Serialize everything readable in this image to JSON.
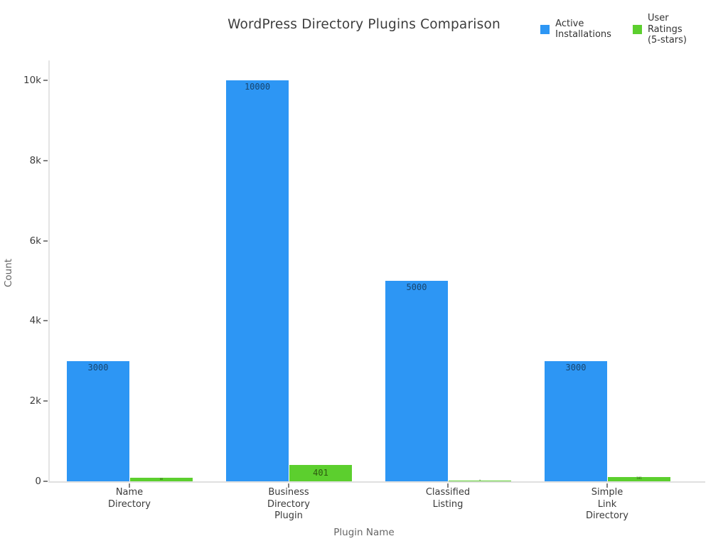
{
  "title": "WordPress Directory Plugins Comparison",
  "legend": {
    "items": [
      {
        "key": "active-installations",
        "label": "Active\nInstallations",
        "color": "#2d96f4"
      },
      {
        "key": "user-ratings",
        "label": "User\nRatings\n(5-stars)",
        "color": "#5ccf2e"
      }
    ]
  },
  "axes": {
    "x_title": "Plugin Name",
    "y_title": "Count"
  },
  "chart_data": {
    "type": "bar",
    "title": "WordPress Directory Plugins Comparison",
    "xlabel": "Plugin Name",
    "ylabel": "Count",
    "grid": false,
    "legend_position": "top-right",
    "ylim": [
      0,
      10000
    ],
    "yticks": [
      {
        "value": 0,
        "label": "0"
      },
      {
        "value": 2000,
        "label": "2k"
      },
      {
        "value": 4000,
        "label": "4k"
      },
      {
        "value": 6000,
        "label": "6k"
      },
      {
        "value": 8000,
        "label": "8k"
      },
      {
        "value": 10000,
        "label": "10k"
      }
    ],
    "categories": [
      "Name\nDirectory",
      "Business\nDirectory\nPlugin",
      "Classified\nListing",
      "Simple\nLink\nDirectory"
    ],
    "series": [
      {
        "key": "active-installations",
        "name": "Active Installations",
        "color": "#2d96f4",
        "label_color": "#17456e",
        "values": [
          3000,
          10000,
          5000,
          3000
        ],
        "value_labels": [
          "3000",
          "10000",
          "5000",
          "3000"
        ]
      },
      {
        "key": "user-ratings",
        "name": "User Ratings (5-stars)",
        "color": "#5ccf2e",
        "label_color": "#2d5a10",
        "values": [
          88,
          401,
          24,
          101
        ],
        "value_labels": [
          "88",
          "401",
          "24",
          "101"
        ]
      }
    ]
  }
}
